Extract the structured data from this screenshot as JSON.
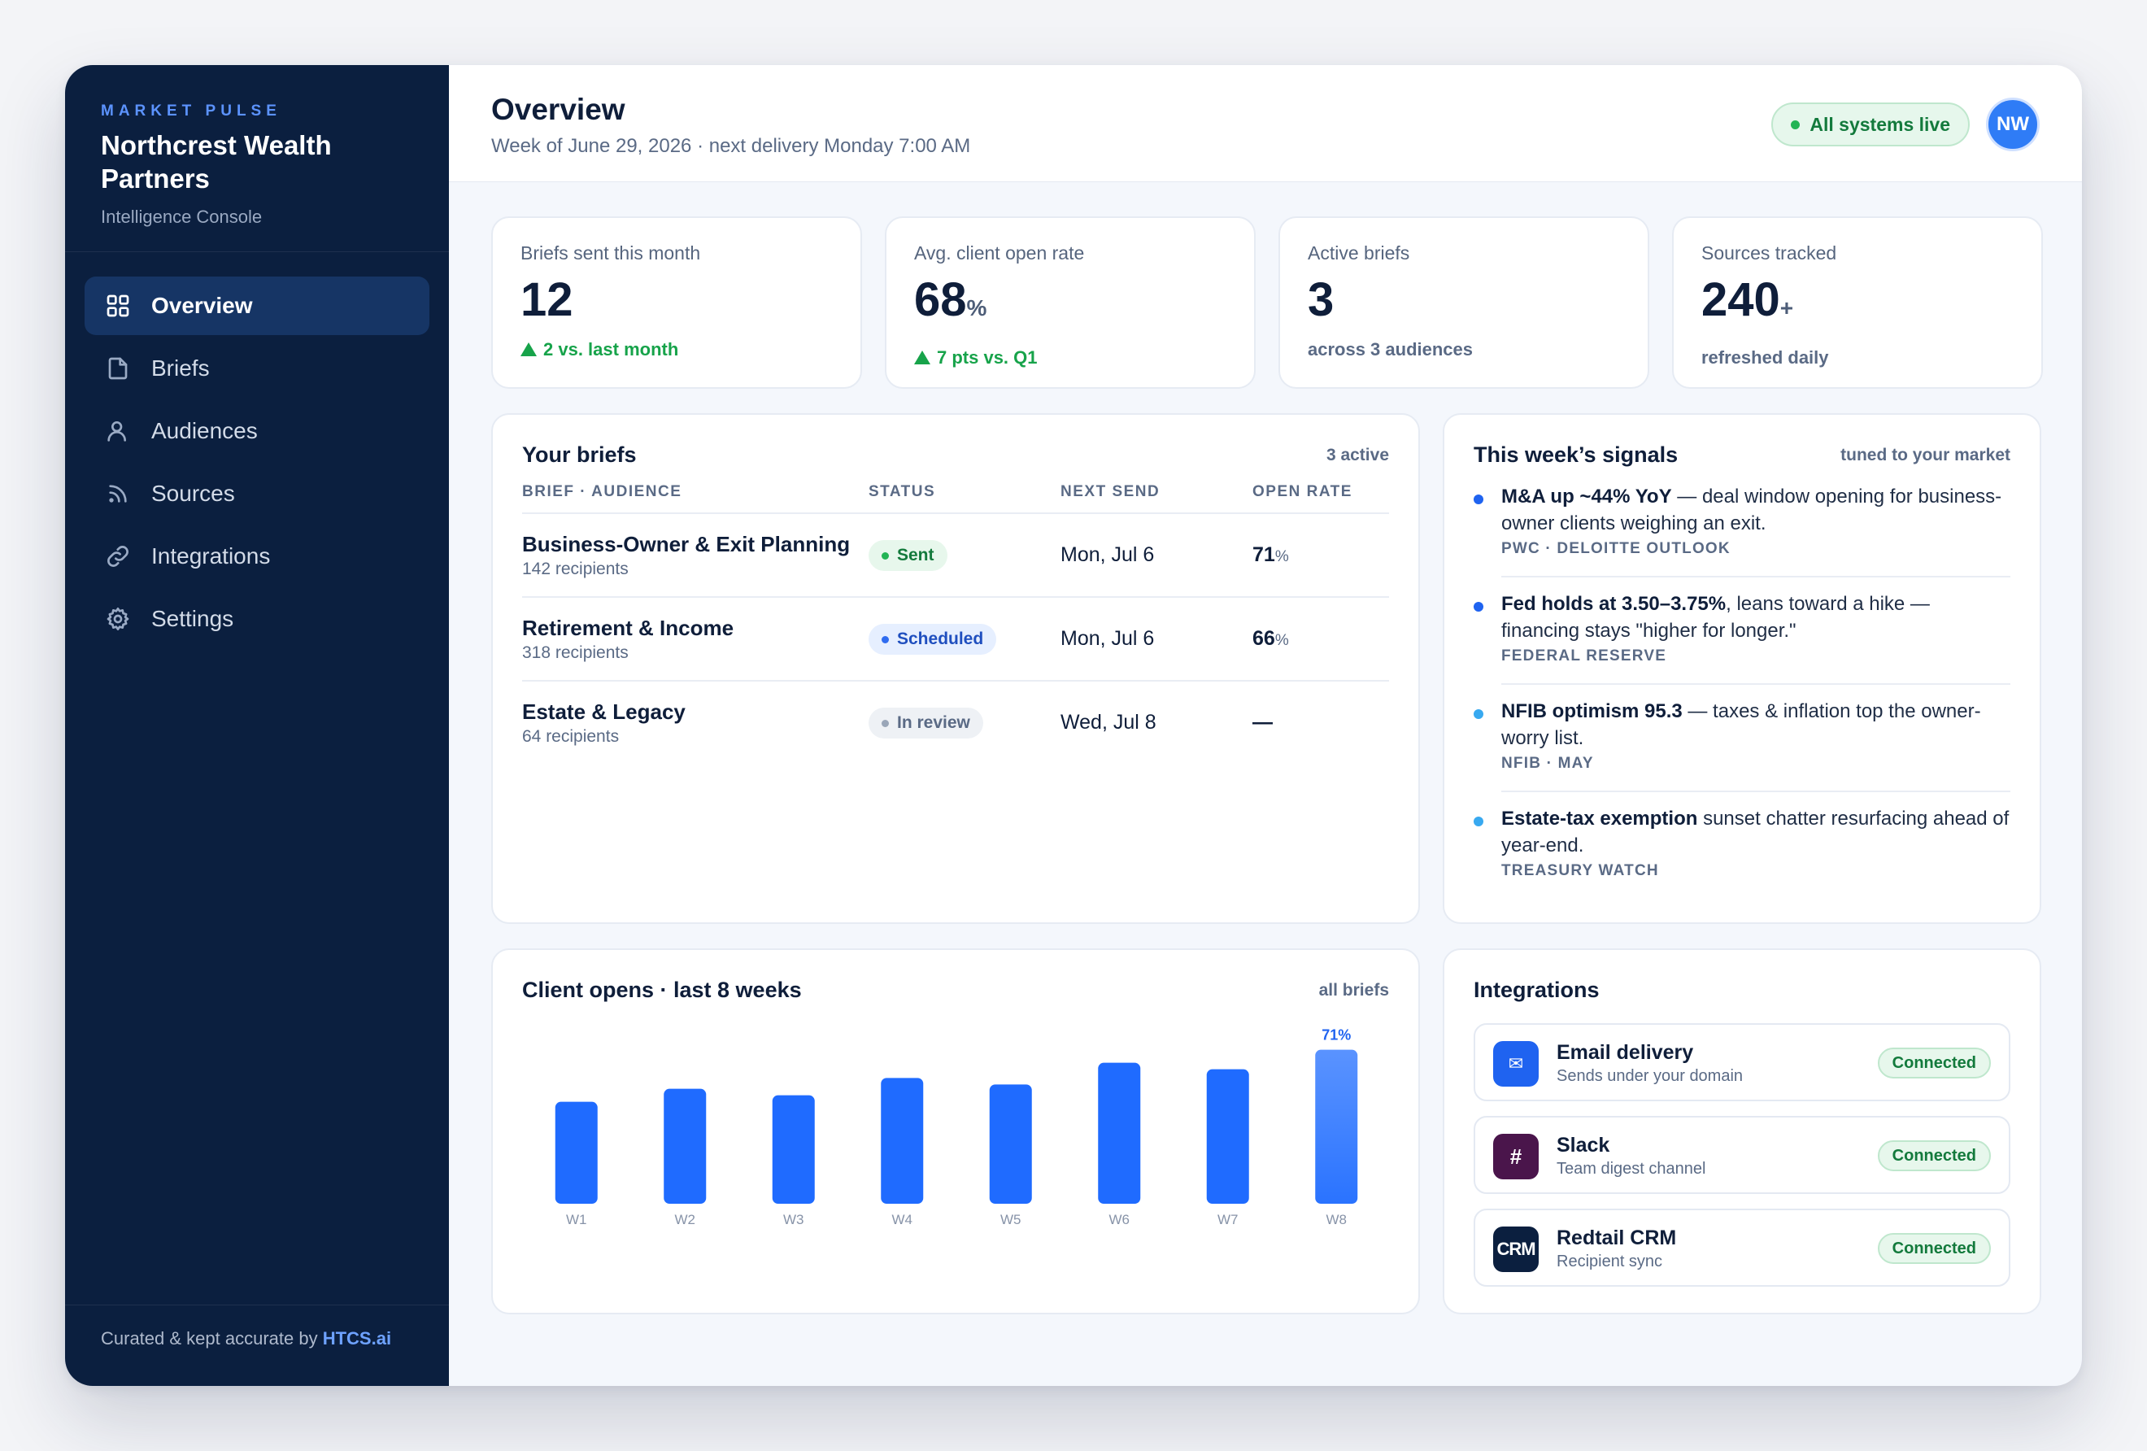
{
  "brand": {
    "eyebrow": "MARKET PULSE",
    "name": "Northcrest Wealth Partners",
    "subtitle": "Intelligence Console"
  },
  "nav": [
    {
      "label": "Overview",
      "icon": "grid-icon",
      "active": true
    },
    {
      "label": "Briefs",
      "icon": "document-icon",
      "active": false
    },
    {
      "label": "Audiences",
      "icon": "user-icon",
      "active": false
    },
    {
      "label": "Sources",
      "icon": "rss-icon",
      "active": false
    },
    {
      "label": "Integrations",
      "icon": "link-icon",
      "active": false
    },
    {
      "label": "Settings",
      "icon": "gear-icon",
      "active": false
    }
  ],
  "footer": {
    "text": "Curated & kept accurate by ",
    "link": "HTCS.ai"
  },
  "header": {
    "title": "Overview",
    "subtitle": "Week of June 29, 2026 · next delivery Monday 7:00 AM",
    "status": "All systems live",
    "avatar_initials": "NW"
  },
  "stats": [
    {
      "label": "Briefs sent this month",
      "value": "12",
      "suffix": "",
      "delta": "2 vs. last month",
      "note": ""
    },
    {
      "label": "Avg. client open rate",
      "value": "68",
      "suffix": "%",
      "delta": "7 pts vs. Q1",
      "note": ""
    },
    {
      "label": "Active briefs",
      "value": "3",
      "suffix": "",
      "delta": "",
      "note": "across 3 audiences"
    },
    {
      "label": "Sources tracked",
      "value": "240",
      "suffix": "+",
      "delta": "",
      "note": "refreshed daily"
    }
  ],
  "briefs": {
    "title": "Your briefs",
    "meta": "3 active",
    "columns": [
      "BRIEF · AUDIENCE",
      "STATUS",
      "NEXT SEND",
      "OPEN RATE"
    ],
    "rows": [
      {
        "name": "Business-Owner & Exit Planning",
        "recipients": "142 recipients",
        "status": "Sent",
        "status_kind": "sent",
        "next_send": "Mon, Jul 6",
        "open_rate": "71",
        "pct": "%"
      },
      {
        "name": "Retirement & Income",
        "recipients": "318 recipients",
        "status": "Scheduled",
        "status_kind": "scheduled",
        "next_send": "Mon, Jul 6",
        "open_rate": "66",
        "pct": "%"
      },
      {
        "name": "Estate & Legacy",
        "recipients": "64 recipients",
        "status": "In review",
        "status_kind": "review",
        "next_send": "Wed, Jul 8",
        "open_rate": "—",
        "pct": ""
      }
    ]
  },
  "signals": {
    "title": "This week’s signals",
    "meta": "tuned to your market",
    "items": [
      {
        "bold": "M&A up ~44% YoY",
        "text": " — deal window opening for business-owner clients weighing an exit.",
        "source": "PWC · DELOITTE OUTLOOK",
        "dot_color": "#1f63f0"
      },
      {
        "bold": "Fed holds at 3.50–3.75%",
        "text": ", leans toward a hike — financing stays \"higher for longer.\"",
        "source": "FEDERAL RESERVE",
        "dot_color": "#1f63f0"
      },
      {
        "bold": "NFIB optimism 95.3",
        "text": " — taxes & inflation top the owner-worry list.",
        "source": "NFIB · MAY",
        "dot_color": "#38a9f0"
      },
      {
        "bold": "Estate-tax exemption",
        "text": " sunset chatter resurfacing ahead of year-end.",
        "source": "TREASURY WATCH",
        "dot_color": "#38a9f0"
      }
    ]
  },
  "opens_chart": {
    "title": "Client opens · last 8 weeks",
    "meta": "all briefs"
  },
  "chart_data": {
    "type": "bar",
    "categories": [
      "W1",
      "W2",
      "W3",
      "W4",
      "W5",
      "W6",
      "W7",
      "W8"
    ],
    "values": [
      47,
      53,
      50,
      58,
      55,
      65,
      62,
      71
    ],
    "data_labels": {
      "W8": "71%"
    },
    "highlight": "W8",
    "ylim": [
      0,
      75
    ],
    "grid": false,
    "colors": {
      "bar": "#1f6bff",
      "highlight_top": "#5a93ff",
      "highlight_bottom": "#2a73ff",
      "label": "#1f63f0"
    }
  },
  "integrations": {
    "title": "Integrations",
    "items": [
      {
        "name": "Email delivery",
        "sub": "Sends under your domain",
        "status": "Connected",
        "icon": "envelope-icon",
        "glyph": "✉",
        "bg": "#1f63f0"
      },
      {
        "name": "Slack",
        "sub": "Team digest channel",
        "status": "Connected",
        "icon": "hash-icon",
        "glyph": "#",
        "bg": "#4a154b"
      },
      {
        "name": "Redtail CRM",
        "sub": "Recipient sync",
        "status": "Connected",
        "icon": "crm-icon",
        "glyph": "CRM",
        "bg": "#0b1f3f"
      }
    ]
  }
}
